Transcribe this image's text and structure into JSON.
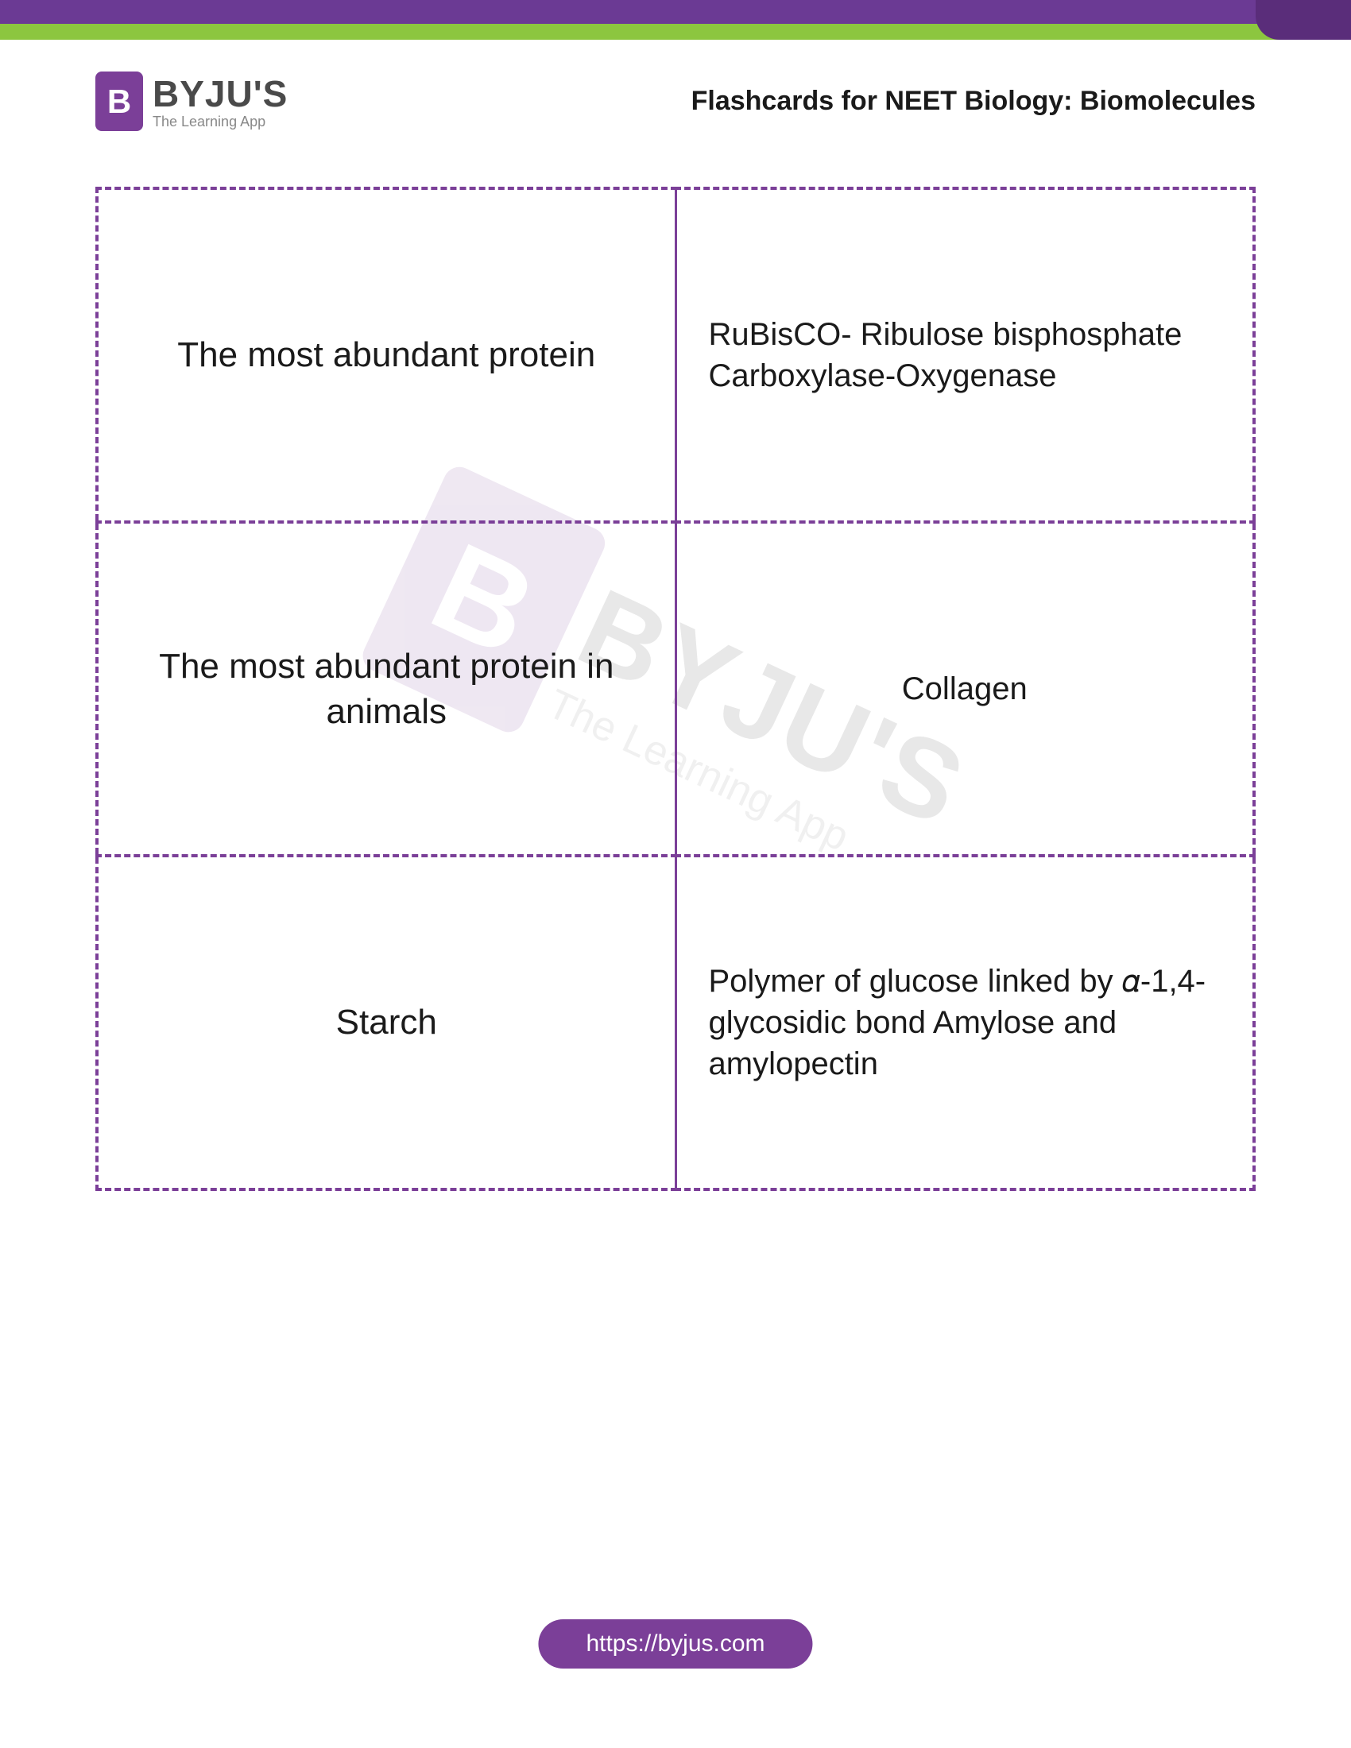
{
  "logo": {
    "badge_letter": "B",
    "name": "BYJU'S",
    "tagline": "The Learning App"
  },
  "page_title": "Flashcards for NEET Biology: Biomolecules",
  "flashcards": [
    {
      "question": "The most abundant protein",
      "answer": "RuBisCO- Ribulose bisphosphate Carboxylase-Oxygenase"
    },
    {
      "question": "The most abundant protein in animals",
      "answer": "Collagen"
    },
    {
      "question": "Starch",
      "answer": "Polymer of glucose linked by 𝛼-1,4-glycosidic bond Amylose and amylopectin"
    }
  ],
  "watermark": {
    "badge_letter": "B",
    "name": "BYJU'S",
    "tagline": "The Learning App"
  },
  "footer_url": "https://byjus.com",
  "colors": {
    "brand_purple": "#7b3f98",
    "brand_green": "#8cc63f",
    "dark_purple": "#5a2d7a",
    "text_dark": "#1a1a1a",
    "text_gray": "#4a4a4a",
    "text_light_gray": "#888"
  }
}
